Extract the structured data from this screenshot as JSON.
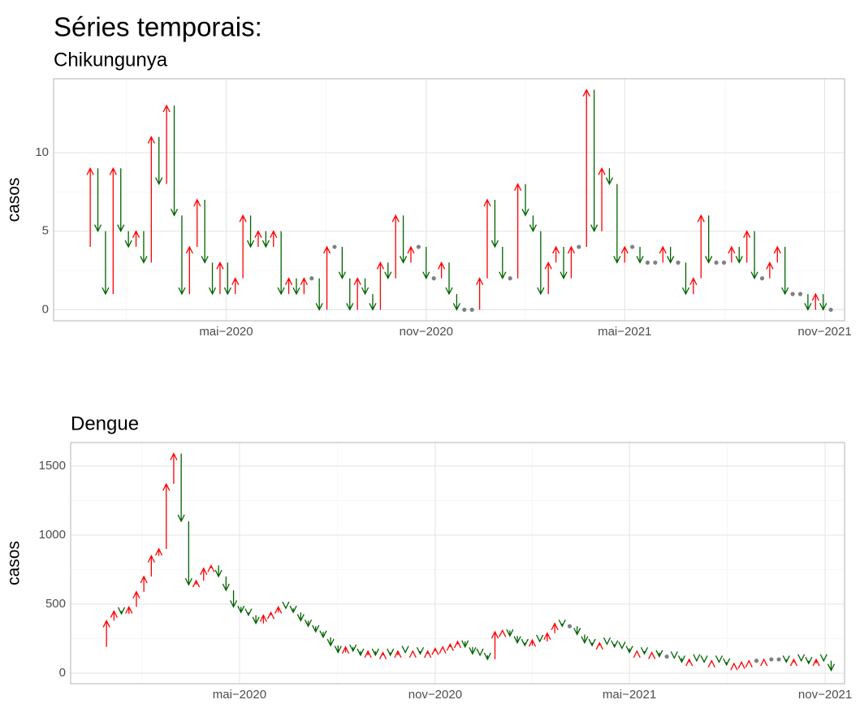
{
  "title": "Séries temporais:",
  "chart_data": [
    {
      "type": "arrow",
      "title": "Chikungunya",
      "ylabel": "casos",
      "values": [
        4,
        9,
        5,
        1,
        9,
        5,
        4,
        5,
        3,
        11,
        8,
        13,
        6,
        1,
        4,
        7,
        3,
        1,
        3,
        1,
        2,
        6,
        4,
        5,
        4,
        5,
        1,
        2,
        1,
        2,
        2,
        0,
        4,
        4,
        2,
        0,
        2,
        1,
        0,
        3,
        2,
        6,
        3,
        4,
        4,
        2,
        2,
        3,
        1,
        0,
        0,
        0,
        2,
        7,
        4,
        2,
        2,
        8,
        6,
        5,
        1,
        3,
        4,
        2,
        4,
        4,
        14,
        5,
        9,
        8,
        3,
        4,
        4,
        3,
        3,
        3,
        4,
        3,
        3,
        1,
        2,
        6,
        3,
        3,
        3,
        4,
        3,
        5,
        2,
        2,
        3,
        4,
        1,
        1,
        1,
        0,
        1,
        0,
        0
      ],
      "xlim": [
        -3.8,
        99.8
      ],
      "xticks": [
        {
          "value": 18.8,
          "label": "mai−2020"
        },
        {
          "value": 45,
          "label": "nov−2020"
        },
        {
          "value": 71,
          "label": "mai−2021"
        },
        {
          "value": 97.2,
          "label": "nov−2021"
        }
      ],
      "ylim": [
        -0.7,
        14.7
      ],
      "yticks": [
        0,
        5,
        10
      ],
      "up_color": "#ff0000",
      "down_color": "#006400",
      "equal_color": "#808080",
      "grid": true
    },
    {
      "type": "arrow",
      "title": "Dengue",
      "ylabel": "casos",
      "values": [
        190,
        380,
        450,
        430,
        480,
        590,
        700,
        850,
        900,
        1370,
        1590,
        1100,
        640,
        670,
        760,
        780,
        700,
        600,
        480,
        440,
        420,
        360,
        420,
        440,
        480,
        470,
        440,
        380,
        340,
        300,
        260,
        200,
        150,
        190,
        160,
        130,
        160,
        130,
        150,
        130,
        160,
        150,
        160,
        140,
        160,
        180,
        190,
        210,
        230,
        190,
        140,
        130,
        100,
        300,
        310,
        270,
        220,
        200,
        240,
        230,
        290,
        360,
        340,
        340,
        280,
        220,
        200,
        220,
        210,
        190,
        180,
        150,
        160,
        140,
        150,
        120,
        120,
        110,
        80,
        100,
        90,
        80,
        90,
        80,
        60,
        70,
        80,
        90,
        90,
        100,
        100,
        100,
        80,
        100,
        90,
        70,
        100,
        90,
        20
      ],
      "xlim": [
        -3.8,
        99.8
      ],
      "xticks": [
        {
          "value": 18.8,
          "label": "mai−2020"
        },
        {
          "value": 45,
          "label": "nov−2020"
        },
        {
          "value": 71,
          "label": "mai−2021"
        },
        {
          "value": 97.2,
          "label": "nov−2021"
        }
      ],
      "ylim": [
        -76,
        1670
      ],
      "yticks": [
        0,
        500,
        1000,
        1500
      ],
      "up_color": "#ff0000",
      "down_color": "#006400",
      "equal_color": "#808080",
      "grid": true
    }
  ]
}
